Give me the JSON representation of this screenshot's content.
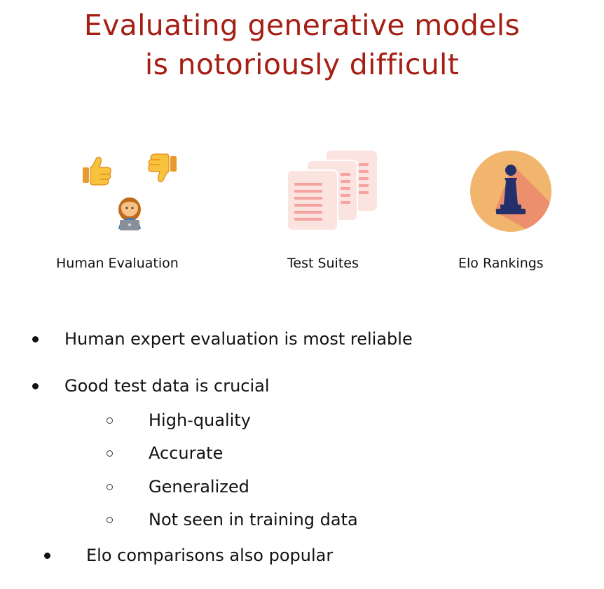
{
  "title": {
    "line1": "Evaluating generative models",
    "line2": "is notoriously difficult"
  },
  "icons": [
    {
      "icon": "thumbs-up-icon",
      "label": "Human Evaluation"
    },
    {
      "icon": "test-documents-icon",
      "label": "Test Suites"
    },
    {
      "icon": "chess-pawn-icon",
      "label": "Elo Rankings"
    }
  ],
  "bullets": {
    "b1": "Human expert evaluation is most reliable",
    "b2": "Good test data is crucial",
    "b2_sub": [
      "High-quality",
      "Accurate",
      "Generalized",
      "Not seen in training data"
    ],
    "b3": "Elo comparisons also popular"
  },
  "colors": {
    "title": "#a51f14",
    "docs": "#fbe3df",
    "doc_lines": "#f5a3a0",
    "elo_circle": "#f2b56e",
    "pawn": "#23306b"
  }
}
